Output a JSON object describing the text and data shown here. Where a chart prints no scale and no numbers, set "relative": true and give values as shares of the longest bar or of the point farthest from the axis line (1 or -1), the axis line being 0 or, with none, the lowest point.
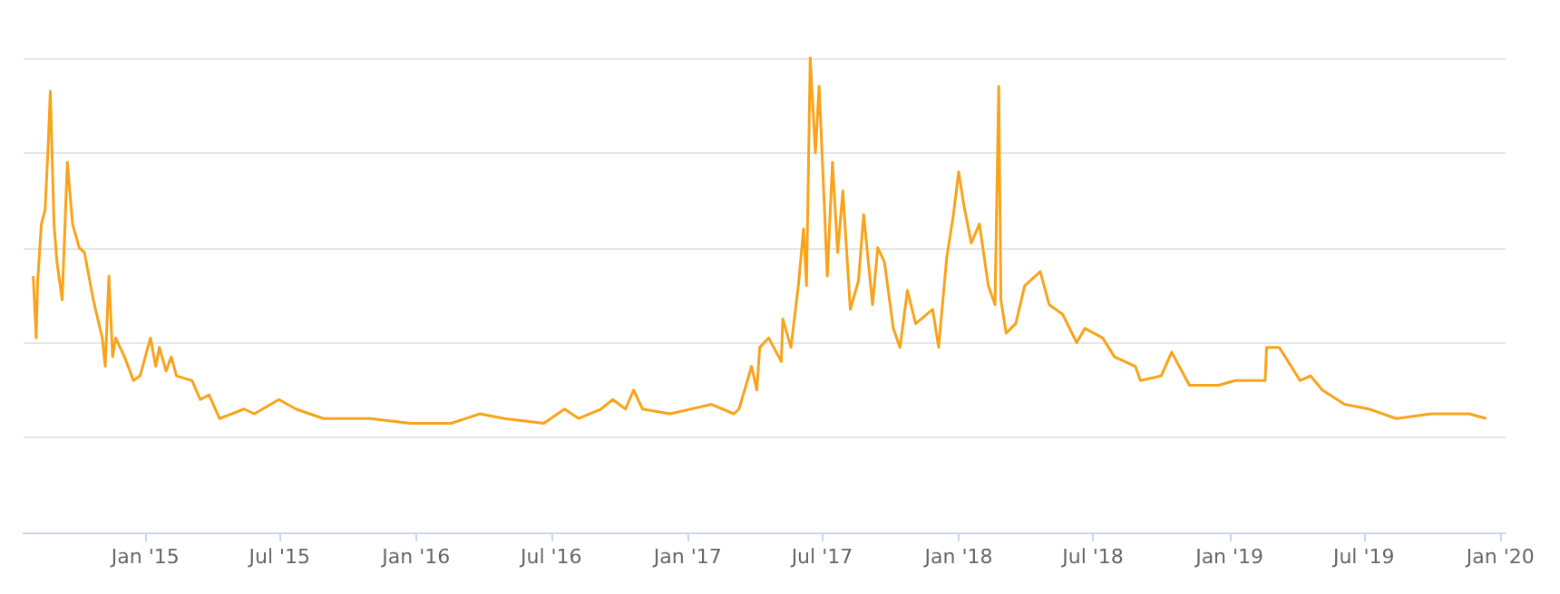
{
  "chart_data": {
    "type": "line",
    "relative": true,
    "grid": "y",
    "marker": "none",
    "xlim": [
      "2014-07-21",
      "2020-01-08"
    ],
    "xticks": [
      {
        "value": "2015-01-01",
        "label": "Jan '15"
      },
      {
        "value": "2015-07-01",
        "label": "Jul '15"
      },
      {
        "value": "2016-01-01",
        "label": "Jan '16"
      },
      {
        "value": "2016-07-01",
        "label": "Jul '16"
      },
      {
        "value": "2017-01-01",
        "label": "Jan '17"
      },
      {
        "value": "2017-07-01",
        "label": "Jul '17"
      },
      {
        "value": "2018-01-01",
        "label": "Jan '18"
      },
      {
        "value": "2018-07-01",
        "label": "Jul '18"
      },
      {
        "value": "2019-01-01",
        "label": "Jan '19"
      },
      {
        "value": "2019-07-01",
        "label": "Jul '19"
      },
      {
        "value": "2020-01-01",
        "label": "Jan '20"
      }
    ],
    "x": [
      "2014-08-03",
      "2014-08-07",
      "2014-08-09",
      "2014-08-14",
      "2014-08-19",
      "2014-08-23",
      "2014-08-26",
      "2014-08-31",
      "2014-09-04",
      "2014-09-11",
      "2014-09-18",
      "2014-09-25",
      "2014-10-04",
      "2014-10-11",
      "2014-10-23",
      "2014-11-04",
      "2014-11-08",
      "2014-11-13",
      "2014-11-18",
      "2014-11-22",
      "2014-12-04",
      "2014-12-16",
      "2014-12-25",
      "2015-01-08",
      "2015-01-15",
      "2015-01-20",
      "2015-01-29",
      "2015-02-05",
      "2015-02-12",
      "2015-03-05",
      "2015-03-16",
      "2015-03-28",
      "2015-04-11",
      "2015-05-14",
      "2015-05-28",
      "2015-06-30",
      "2015-07-23",
      "2015-08-29",
      "2015-10-31",
      "2015-12-24",
      "2016-02-17",
      "2016-03-27",
      "2016-04-29",
      "2016-06-21",
      "2016-07-19",
      "2016-08-07",
      "2016-09-06",
      "2016-09-22",
      "2016-10-09",
      "2016-10-20",
      "2016-11-01",
      "2016-12-08",
      "2017-02-02",
      "2017-03-04",
      "2017-03-11",
      "2017-03-28",
      "2017-04-04",
      "2017-04-08",
      "2017-04-20",
      "2017-05-07",
      "2017-05-09",
      "2017-05-20",
      "2017-05-30",
      "2017-06-06",
      "2017-06-10",
      "2017-06-15",
      "2017-06-22",
      "2017-06-27",
      "2017-07-04",
      "2017-07-08",
      "2017-07-15",
      "2017-07-22",
      "2017-07-29",
      "2017-08-08",
      "2017-08-19",
      "2017-08-26",
      "2017-09-07",
      "2017-09-14",
      "2017-09-23",
      "2017-10-05",
      "2017-10-14",
      "2017-10-24",
      "2017-11-04",
      "2017-11-27",
      "2017-12-05",
      "2017-12-16",
      "2017-12-25",
      "2018-01-01",
      "2018-01-08",
      "2018-01-18",
      "2018-01-29",
      "2018-02-10",
      "2018-02-19",
      "2018-02-24",
      "2018-02-27",
      "2018-03-06",
      "2018-03-19",
      "2018-03-31",
      "2018-04-21",
      "2018-05-03",
      "2018-05-21",
      "2018-06-09",
      "2018-06-20",
      "2018-07-14",
      "2018-07-30",
      "2018-08-27",
      "2018-09-03",
      "2018-10-01",
      "2018-10-15",
      "2018-11-08",
      "2018-12-17",
      "2019-01-09",
      "2019-02-18",
      "2019-02-20",
      "2019-03-09",
      "2019-04-06",
      "2019-04-20",
      "2019-05-06",
      "2019-06-05",
      "2019-07-08",
      "2019-08-14",
      "2019-09-30",
      "2019-11-20",
      "2019-12-13"
    ],
    "series": [
      {
        "color": "#f9a31a",
        "values": [
          0.54,
          0.41,
          0.53,
          0.65,
          0.68,
          0.81,
          0.93,
          0.65,
          0.57,
          0.49,
          0.78,
          0.65,
          0.6,
          0.59,
          0.49,
          0.41,
          0.35,
          0.54,
          0.37,
          0.41,
          0.37,
          0.32,
          0.33,
          0.41,
          0.35,
          0.39,
          0.34,
          0.37,
          0.33,
          0.32,
          0.28,
          0.29,
          0.24,
          0.26,
          0.25,
          0.28,
          0.26,
          0.24,
          0.24,
          0.23,
          0.23,
          0.25,
          0.24,
          0.23,
          0.26,
          0.24,
          0.26,
          0.28,
          0.26,
          0.3,
          0.26,
          0.25,
          0.27,
          0.25,
          0.26,
          0.35,
          0.3,
          0.39,
          0.41,
          0.36,
          0.45,
          0.39,
          0.52,
          0.64,
          0.52,
          1,
          0.8,
          0.94,
          0.69,
          0.54,
          0.78,
          0.59,
          0.72,
          0.47,
          0.53,
          0.67,
          0.48,
          0.6,
          0.57,
          0.43,
          0.39,
          0.51,
          0.44,
          0.47,
          0.39,
          0.58,
          0.67,
          0.76,
          0.69,
          0.61,
          0.65,
          0.52,
          0.48,
          0.94,
          0.49,
          0.42,
          0.44,
          0.52,
          0.55,
          0.48,
          0.46,
          0.4,
          0.43,
          0.41,
          0.37,
          0.35,
          0.32,
          0.33,
          0.38,
          0.31,
          0.31,
          0.32,
          0.32,
          0.39,
          0.39,
          0.32,
          0.33,
          0.3,
          0.27,
          0.26,
          0.24,
          0.25,
          0.25,
          0.24
        ]
      }
    ]
  }
}
